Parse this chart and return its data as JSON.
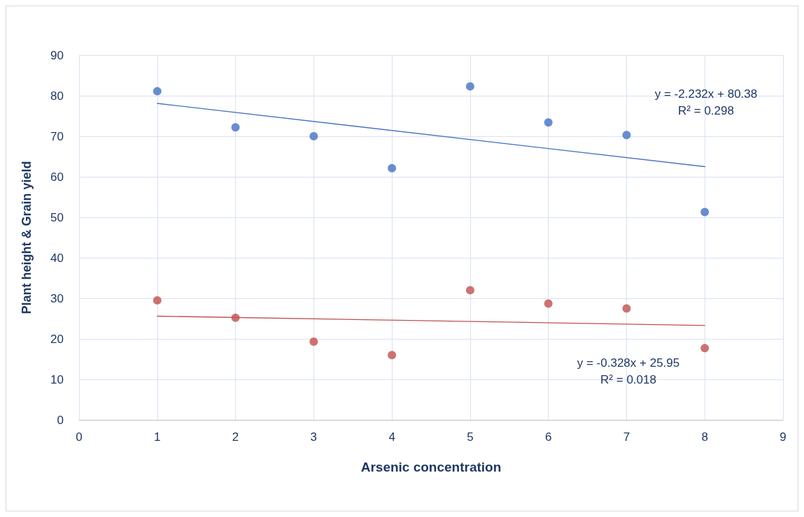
{
  "chart_data": {
    "type": "scatter",
    "xlabel": "Arsenic concentration",
    "ylabel": "Plant height & Grain yield",
    "xlim": [
      0,
      9
    ],
    "xticks": [
      0,
      1,
      2,
      3,
      4,
      5,
      6,
      7,
      8,
      9
    ],
    "ylim": [
      0,
      90
    ],
    "yticks": [
      0,
      10,
      20,
      30,
      40,
      50,
      60,
      70,
      80,
      90
    ],
    "grid": true,
    "marker": "circle",
    "series": [
      {
        "color": "#4472c4",
        "x": [
          1,
          2,
          3,
          4,
          5,
          6,
          7,
          8
        ],
        "values": [
          81.1,
          72.2,
          70,
          62.1,
          82.3,
          73.4,
          70.3,
          51.3
        ]
      },
      {
        "color": "#c0504d",
        "x": [
          1,
          2,
          3,
          4,
          5,
          6,
          7,
          8
        ],
        "values": [
          29.5,
          25.2,
          19.3,
          16,
          32,
          28.7,
          27.5,
          17.7
        ]
      },
      {
        "type": "line",
        "marker": "none",
        "line_style": "solid",
        "color": "#4472c4",
        "x": [
          1,
          8
        ],
        "values": [
          78.1,
          62.5
        ]
      },
      {
        "type": "line",
        "marker": "none",
        "line_style": "solid",
        "color": "#c0504d",
        "x": [
          1,
          8
        ],
        "values": [
          25.6,
          23.3
        ]
      }
    ],
    "annotations": [
      "y = -2.232x + 80.38\nR² = 0.298",
      "y = -0.328x + 25.95\nR² = 0.018"
    ]
  }
}
